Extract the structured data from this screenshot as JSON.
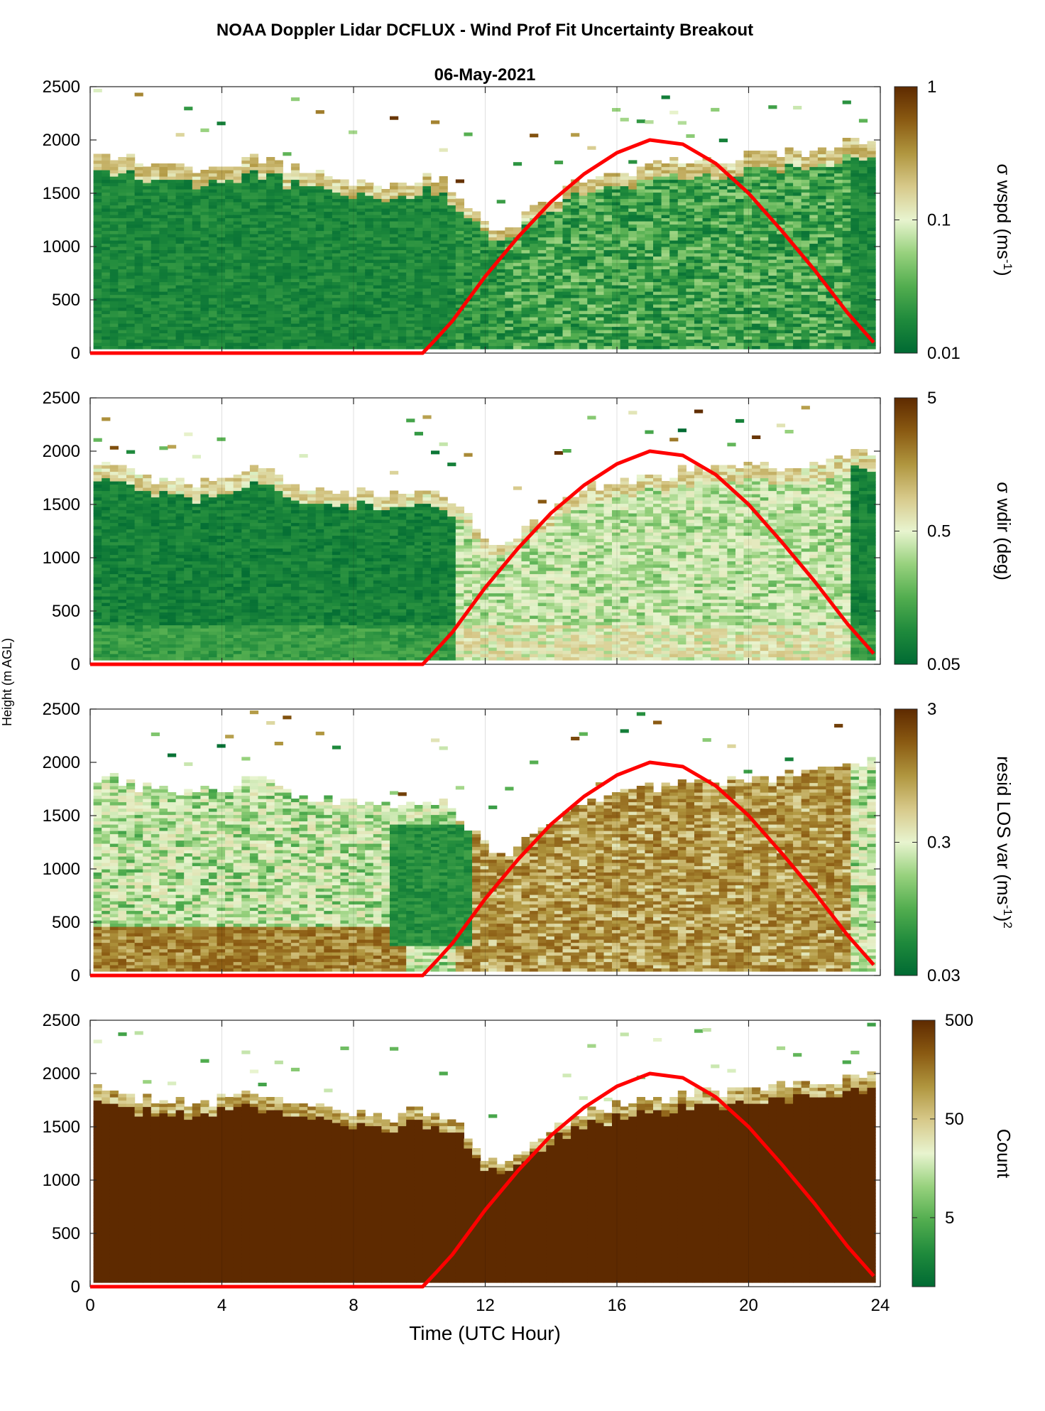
{
  "figure": {
    "title": "NOAA Doppler Lidar DCFLUX - Wind Prof Fit Uncertainty Breakout",
    "subtitle": "06-May-2021",
    "ylabel": "Height (m AGL)",
    "xlabel": "Time (UTC Hour)"
  },
  "colors": {
    "curve": "#ff0000",
    "colormap": [
      "#006a33",
      "#1f8a3c",
      "#52ad4f",
      "#97d17d",
      "#e8f4cf",
      "#d7c98a",
      "#b0963f",
      "#8a5a12",
      "#5e2a00"
    ]
  },
  "chart_data": [
    {
      "type": "heatmap",
      "panel": "sigma-wspd",
      "xlim": [
        0,
        24
      ],
      "ylim": [
        0,
        2500
      ],
      "x_ticks": [
        "0",
        "4",
        "8",
        "12",
        "16",
        "20",
        "24"
      ],
      "y_ticks": [
        "0",
        "500",
        "1000",
        "1500",
        "2000",
        "2500"
      ],
      "colorbar": {
        "label_main": "σ wspd (ms",
        "label_sup": "-1",
        "label_tail": ")",
        "scale": "log",
        "range": [
          0.01,
          1
        ],
        "tick_values": [
          0.01,
          0.1,
          1
        ],
        "tick_labels": [
          "0.01",
          "0.1",
          "1"
        ]
      },
      "field": {
        "typical_low": 0.012,
        "typical_high": 0.06,
        "top_edge_value": 0.2
      }
    },
    {
      "type": "heatmap",
      "panel": "sigma-wdir",
      "xlim": [
        0,
        24
      ],
      "ylim": [
        0,
        2500
      ],
      "x_ticks": [
        "0",
        "4",
        "8",
        "12",
        "16",
        "20",
        "24"
      ],
      "y_ticks": [
        "0",
        "500",
        "1000",
        "1500",
        "2000",
        "2500"
      ],
      "colorbar": {
        "label_main": "σ wdir (deg)",
        "scale": "log",
        "range": [
          0.05,
          5
        ],
        "tick_values": [
          0.05,
          0.5,
          5
        ],
        "tick_labels": [
          "0.05",
          "0.5",
          "5"
        ]
      },
      "field": {
        "night_value": 0.06,
        "day_value": 0.35,
        "top_edge_value": 0.8
      }
    },
    {
      "type": "heatmap",
      "panel": "resid-los-var",
      "xlim": [
        0,
        24
      ],
      "ylim": [
        0,
        2500
      ],
      "x_ticks": [
        "0",
        "4",
        "8",
        "12",
        "16",
        "20",
        "24"
      ],
      "y_ticks": [
        "0",
        "500",
        "1000",
        "1500",
        "2000",
        "2500"
      ],
      "colorbar": {
        "label_main": "resid LOS var (ms",
        "label_sup": "-1",
        "label_tail": ")",
        "label_sup2": "2",
        "scale": "log",
        "range": [
          0.03,
          3
        ],
        "tick_values": [
          0.03,
          0.3,
          3
        ],
        "tick_labels": [
          "0.03",
          "0.3",
          "3"
        ]
      },
      "field": {
        "night_value": 0.2,
        "day_value": 0.9,
        "low_level_value": 1.2
      }
    },
    {
      "type": "heatmap",
      "panel": "count",
      "xlim": [
        0,
        24
      ],
      "ylim": [
        0,
        2500
      ],
      "x_ticks": [
        "0",
        "4",
        "8",
        "12",
        "16",
        "20",
        "24"
      ],
      "y_ticks": [
        "0",
        "500",
        "1000",
        "1500",
        "2000",
        "2500"
      ],
      "colorbar": {
        "label_main": "Count",
        "scale": "log",
        "range": [
          1,
          500
        ],
        "tick_values": [
          5,
          50,
          500
        ],
        "tick_labels": [
          "5",
          "50",
          "500"
        ]
      },
      "field": {
        "interior_value": 500,
        "edge_value": 20
      }
    }
  ],
  "layer_top": {
    "x": [
      0.2,
      1,
      2,
      3,
      4,
      5,
      6,
      7,
      8,
      9,
      10,
      10.5,
      11,
      11.5,
      12,
      12.5,
      13,
      14,
      15,
      16,
      17,
      18,
      19,
      20,
      21,
      22,
      23,
      23.8
    ],
    "y": [
      1850,
      1800,
      1720,
      1690,
      1750,
      1820,
      1700,
      1650,
      1600,
      1550,
      1650,
      1600,
      1500,
      1350,
      1150,
      1100,
      1250,
      1450,
      1650,
      1700,
      1750,
      1800,
      1800,
      1850,
      1850,
      1900,
      1950,
      2000
    ]
  },
  "sun_curve": {
    "x": [
      0,
      10.1,
      10.5,
      11,
      12,
      13,
      14,
      15,
      16,
      17,
      18,
      19,
      20,
      21,
      22,
      23,
      23.8
    ],
    "y": [
      0,
      0,
      130,
      300,
      720,
      1090,
      1420,
      1680,
      1880,
      2000,
      1960,
      1780,
      1500,
      1150,
      780,
      380,
      100
    ]
  }
}
